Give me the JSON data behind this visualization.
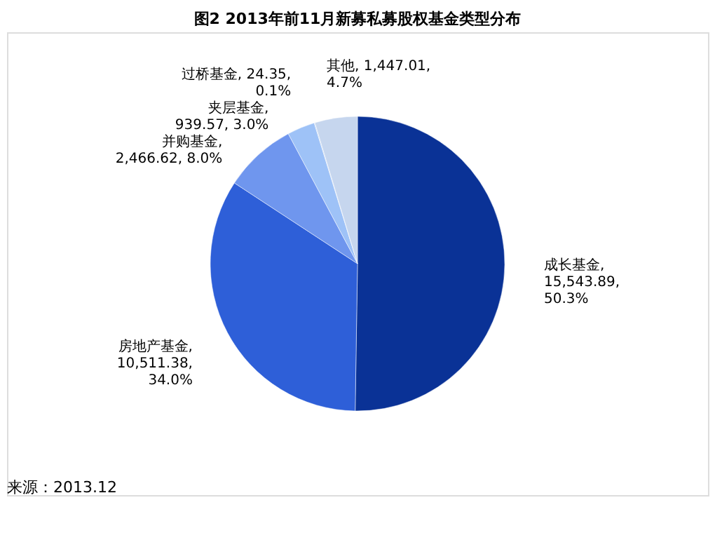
{
  "chart_data": {
    "type": "pie",
    "title": "图2 2013年前11月新募私募股权基金类型分布",
    "categories": [
      "成长基金",
      "房地产基金",
      "并购基金",
      "夹层基金",
      "过桥基金",
      "其他"
    ],
    "values": [
      15543.89,
      10511.38,
      2466.62,
      939.57,
      24.35,
      1447.01
    ],
    "value_labels": [
      ",\n15,543.89,\n50.3%",
      ",\n10,511.38,\n34.0%",
      ",\n2,466.62, 8.0%",
      ",\n939.57, 3.0%",
      ", 24.35,\n0.1%",
      ", 1,447.01,\n4.7%"
    ],
    "colors": [
      "#0a3296",
      "#2e5fd8",
      "#6f96ee",
      "#9ec2f7",
      "#b5cdf3",
      "#c6d6ee"
    ],
    "legend": false,
    "annotations": [
      "来源：2013.12"
    ]
  }
}
